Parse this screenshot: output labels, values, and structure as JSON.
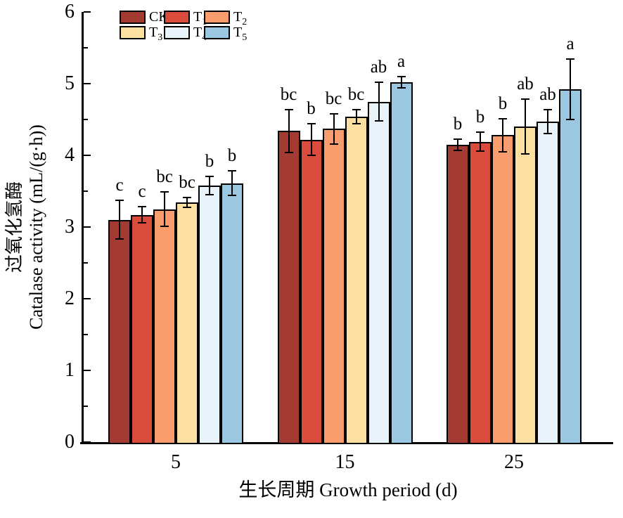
{
  "chart_data": {
    "type": "bar",
    "title": "",
    "xlabel": "生长周期  Growth period (d)",
    "ylabel_cn": "过氧化氢酶",
    "ylabel_en": "Catalase activity (mL/(g·h))",
    "categories": [
      "5",
      "15",
      "25"
    ],
    "ylim": [
      0,
      6
    ],
    "ytick_major": 1,
    "ytick_minor": 0.5,
    "grid": "off",
    "legend_position": "top-left-inside",
    "axis_color": "#000000",
    "series": [
      {
        "name": "CK",
        "label_base": "CK",
        "label_sub": "",
        "color": "#a33b33",
        "values": [
          3.1,
          4.34,
          4.15
        ],
        "errors": [
          0.27,
          0.3,
          0.08
        ],
        "letters": [
          "c",
          "bc",
          "b"
        ]
      },
      {
        "name": "T1",
        "label_base": "T",
        "label_sub": "1",
        "color": "#d94b3c",
        "values": [
          3.17,
          4.22,
          4.19
        ],
        "errors": [
          0.11,
          0.22,
          0.13
        ],
        "letters": [
          "c",
          "b",
          "b"
        ]
      },
      {
        "name": "T2",
        "label_base": "T",
        "label_sub": "2",
        "color": "#f99d6e",
        "values": [
          3.25,
          4.37,
          4.28
        ],
        "errors": [
          0.24,
          0.21,
          0.23
        ],
        "letters": [
          "bc",
          "bc",
          "b"
        ]
      },
      {
        "name": "T3",
        "label_base": "T",
        "label_sub": "3",
        "color": "#fce0a2",
        "values": [
          3.34,
          4.54,
          4.4
        ],
        "errors": [
          0.07,
          0.1,
          0.38
        ],
        "letters": [
          "bc",
          "bc",
          "ab"
        ]
      },
      {
        "name": "T4",
        "label_base": "T",
        "label_sub": "4",
        "color": "#e7f3f8",
        "values": [
          3.58,
          4.75,
          4.47
        ],
        "errors": [
          0.13,
          0.27,
          0.17
        ],
        "letters": [
          "b",
          "ab",
          "ab"
        ]
      },
      {
        "name": "T5",
        "label_base": "T",
        "label_sub": "5",
        "color": "#9cc7e0",
        "values": [
          3.61,
          5.02,
          4.92
        ],
        "errors": [
          0.17,
          0.08,
          0.42
        ],
        "letters": [
          "b",
          "a",
          "a"
        ]
      }
    ]
  }
}
